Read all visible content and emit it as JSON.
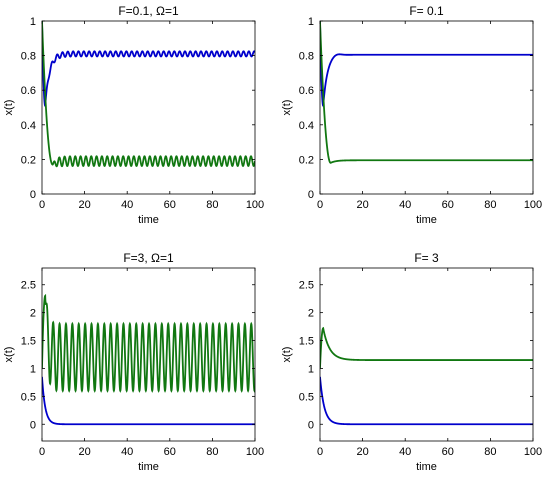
{
  "chart_data": [
    {
      "type": "line",
      "title": "F=0.1, Ω=1",
      "xlabel": "time",
      "ylabel": "x(t)",
      "xlim": [
        0,
        100
      ],
      "ylim": [
        0,
        1
      ],
      "xticks": [
        "0",
        "20",
        "40",
        "60",
        "80",
        "100"
      ],
      "yticks": [
        "0",
        "0.2",
        "0.4",
        "0.6",
        "0.8",
        "1"
      ],
      "grid": false,
      "series": [
        {
          "color": "#0000cc",
          "model": {
            "start": 1.0,
            "dip_t": 1.5,
            "dip_v": 0.51,
            "settle": 0.81,
            "tau": 2.0,
            "osc_amp": 0.015,
            "osc_period": 2.5
          }
        },
        {
          "color": "#117711",
          "model": {
            "start": 1.0,
            "dip_t": 5.0,
            "dip_v": 0.17,
            "settle": 0.19,
            "tau": 2.0,
            "osc_amp": 0.028,
            "osc_period": 2.5
          }
        }
      ]
    },
    {
      "type": "line",
      "title": "F= 0.1",
      "xlabel": "time",
      "ylabel": "x(t)",
      "xlim": [
        0,
        100
      ],
      "ylim": [
        0,
        1
      ],
      "xticks": [
        "0",
        "20",
        "40",
        "60",
        "80",
        "100"
      ],
      "yticks": [
        "0",
        "0.2",
        "0.4",
        "0.6",
        "0.8",
        "1"
      ],
      "grid": false,
      "series": [
        {
          "color": "#0000cc",
          "model": {
            "start": 1.0,
            "dip_t": 1.5,
            "dip_v": 0.51,
            "settle": 0.805,
            "tau": 2.0,
            "overshoot": 0.012,
            "osc_amp": 0,
            "osc_period": 1
          }
        },
        {
          "color": "#117711",
          "model": {
            "start": 1.0,
            "dip_t": 5.0,
            "dip_v": 0.18,
            "settle": 0.195,
            "tau": 2.5,
            "osc_amp": 0,
            "osc_period": 1
          }
        }
      ]
    },
    {
      "type": "line",
      "title": "F=3, Ω=1",
      "xlabel": "time",
      "ylabel": "x(t)",
      "xlim": [
        0,
        100
      ],
      "ylim": [
        -0.3,
        2.8
      ],
      "xticks": [
        "0",
        "20",
        "40",
        "60",
        "80",
        "100"
      ],
      "yticks": [
        "0",
        "0.5",
        "1",
        "1.5",
        "2",
        "2.5"
      ],
      "grid": false,
      "series": [
        {
          "color": "#0000cc",
          "model": {
            "start": 0.85,
            "dip_t": 0,
            "dip_v": 0.85,
            "settle": 0.0,
            "tau": 1.5,
            "osc_amp": 0,
            "osc_period": 1
          }
        },
        {
          "color": "#117711",
          "model": {
            "start": 1.0,
            "dip_t": 1.5,
            "dip_v": 2.3,
            "settle": 1.2,
            "tau": 1.0,
            "osc_amp": 0.6,
            "osc_period": 3.0
          }
        }
      ]
    },
    {
      "type": "line",
      "title": "F= 3",
      "xlabel": "time",
      "ylabel": "x(t)",
      "xlim": [
        0,
        100
      ],
      "ylim": [
        -0.3,
        2.8
      ],
      "xticks": [
        "0",
        "20",
        "40",
        "60",
        "80",
        "100"
      ],
      "yticks": [
        "0",
        "0.5",
        "1",
        "1.5",
        "2",
        "2.5"
      ],
      "grid": false,
      "series": [
        {
          "color": "#0000cc",
          "model": {
            "start": 0.85,
            "dip_t": 0,
            "dip_v": 0.85,
            "settle": 0.0,
            "tau": 2.0,
            "osc_amp": 0,
            "osc_period": 1
          }
        },
        {
          "color": "#117711",
          "model": {
            "start": 1.0,
            "dip_t": 1.5,
            "dip_v": 1.72,
            "settle": 1.15,
            "tau": 3.0,
            "osc_amp": 0,
            "osc_period": 1
          }
        }
      ]
    }
  ]
}
